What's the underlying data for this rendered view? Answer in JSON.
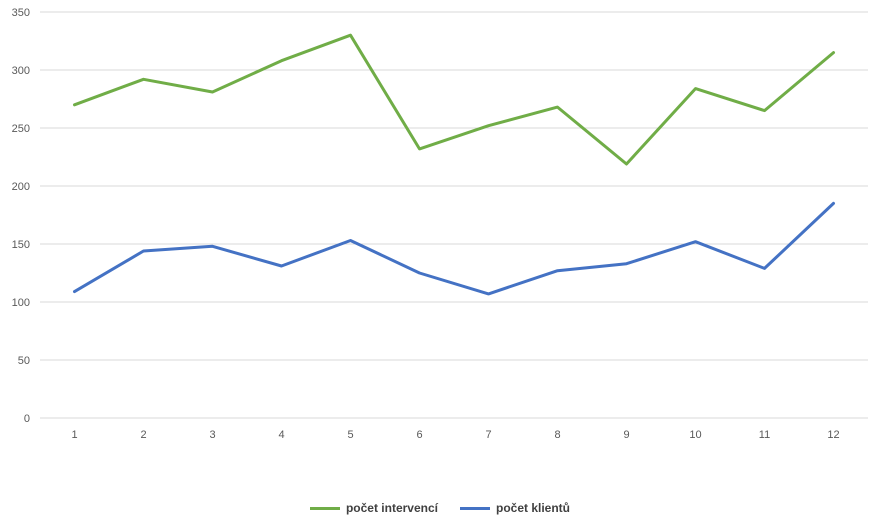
{
  "chart_data": {
    "type": "line",
    "title": "",
    "xlabel": "",
    "ylabel": "",
    "categories": [
      "1",
      "2",
      "3",
      "4",
      "5",
      "6",
      "7",
      "8",
      "9",
      "10",
      "11",
      "12"
    ],
    "ylim": [
      0,
      350
    ],
    "yticks": [
      "0",
      "50",
      "100",
      "150",
      "200",
      "250",
      "300",
      "350"
    ],
    "grid": true,
    "legend_position": "bottom",
    "series": [
      {
        "name": "počet intervencí",
        "color": "#70ad47",
        "values": [
          270,
          292,
          281,
          308,
          330,
          232,
          252,
          268,
          219,
          284,
          265,
          315
        ]
      },
      {
        "name": "počet klientů",
        "color": "#4472c4",
        "values": [
          109,
          144,
          148,
          131,
          153,
          125,
          107,
          127,
          133,
          152,
          129,
          185
        ]
      }
    ]
  }
}
